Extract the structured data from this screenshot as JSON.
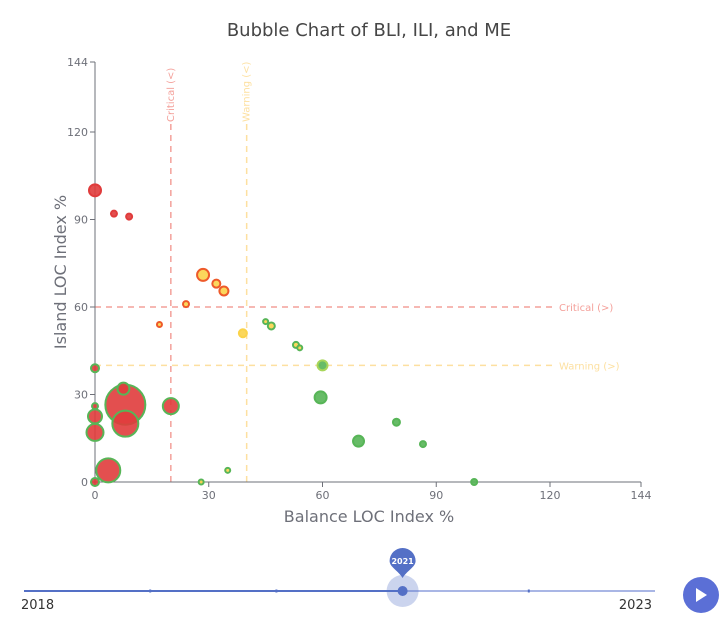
{
  "chart_data": {
    "type": "scatter",
    "title": "Bubble Chart of BLI, ILI, and ME",
    "xlabel": "Balance LOC Index %",
    "ylabel": "Island LOC Index %",
    "xlim": [
      0,
      144
    ],
    "ylim": [
      0,
      144
    ],
    "x_ticks": [
      0,
      30,
      60,
      90,
      120,
      144
    ],
    "y_ticks": [
      0,
      30,
      60,
      90,
      120,
      144
    ],
    "reference_lines": [
      {
        "axis": "x",
        "value": 20,
        "label": "Critical (<)",
        "color": "#f4a09a"
      },
      {
        "axis": "x",
        "value": 40,
        "label": "Warning (<)",
        "color": "#fde0a0"
      },
      {
        "axis": "y",
        "value": 60,
        "label": "Critical (>)",
        "color": "#f4a09a"
      },
      {
        "axis": "y",
        "value": 40,
        "label": "Warning (>)",
        "color": "#fde0a0"
      }
    ],
    "points": [
      {
        "x": 0,
        "y": 100,
        "size": 6,
        "fill": "#e03c3c",
        "stroke": "#e03c3c"
      },
      {
        "x": 5,
        "y": 92,
        "size": 3,
        "fill": "#e03c3c",
        "stroke": "#e03c3c"
      },
      {
        "x": 9,
        "y": 91,
        "size": 3,
        "fill": "#e03c3c",
        "stroke": "#e03c3c"
      },
      {
        "x": 28.5,
        "y": 71,
        "size": 6,
        "fill": "#fbd34a",
        "stroke": "#ee5a2a"
      },
      {
        "x": 32,
        "y": 68,
        "size": 4,
        "fill": "#fbd34a",
        "stroke": "#ee5a2a"
      },
      {
        "x": 34,
        "y": 65.5,
        "size": 4.5,
        "fill": "#fbd34a",
        "stroke": "#ee5a2a"
      },
      {
        "x": 24,
        "y": 61,
        "size": 3,
        "fill": "#fbd34a",
        "stroke": "#ee5a2a"
      },
      {
        "x": 17,
        "y": 54,
        "size": 2.5,
        "fill": "#fbd34a",
        "stroke": "#ee5a2a"
      },
      {
        "x": 39,
        "y": 51,
        "size": 4,
        "fill": "#fbd34a",
        "stroke": "#fbd34a"
      },
      {
        "x": 45,
        "y": 55,
        "size": 2.5,
        "fill": "#fbd34a",
        "stroke": "#57b557"
      },
      {
        "x": 46.5,
        "y": 53.5,
        "size": 3.5,
        "fill": "#fbd34a",
        "stroke": "#57b557"
      },
      {
        "x": 53,
        "y": 47,
        "size": 3,
        "fill": "#fbd34a",
        "stroke": "#57b557"
      },
      {
        "x": 54,
        "y": 46,
        "size": 2.5,
        "fill": "#fbd34a",
        "stroke": "#57b557"
      },
      {
        "x": 60,
        "y": 40,
        "size": 5,
        "fill": "#57b557",
        "stroke": "#a8d65a"
      },
      {
        "x": 59.5,
        "y": 29,
        "size": 6,
        "fill": "#57b557",
        "stroke": "#57b557"
      },
      {
        "x": 69.5,
        "y": 14,
        "size": 5.5,
        "fill": "#57b557",
        "stroke": "#57b557"
      },
      {
        "x": 79.5,
        "y": 20.5,
        "size": 3.5,
        "fill": "#57b557",
        "stroke": "#57b557"
      },
      {
        "x": 86.5,
        "y": 13,
        "size": 3,
        "fill": "#57b557",
        "stroke": "#57b557"
      },
      {
        "x": 100,
        "y": 0,
        "size": 3,
        "fill": "#57b557",
        "stroke": "#57b557"
      },
      {
        "x": 28,
        "y": 0,
        "size": 2.5,
        "fill": "#fbd34a",
        "stroke": "#57b557"
      },
      {
        "x": 35,
        "y": 4,
        "size": 2.5,
        "fill": "#fbd34a",
        "stroke": "#57b557"
      },
      {
        "x": 0,
        "y": 39,
        "size": 4,
        "fill": "#e03c3c",
        "stroke": "#57b557"
      },
      {
        "x": 0,
        "y": 26,
        "size": 3,
        "fill": "#e03c3c",
        "stroke": "#57b557"
      },
      {
        "x": 0,
        "y": 22.5,
        "size": 7,
        "fill": "#e03c3c",
        "stroke": "#57b557"
      },
      {
        "x": 0,
        "y": 17,
        "size": 8.5,
        "fill": "#e03c3c",
        "stroke": "#57b557"
      },
      {
        "x": 0,
        "y": 0,
        "size": 4,
        "fill": "#e03c3c",
        "stroke": "#57b557"
      },
      {
        "x": 3.5,
        "y": 4,
        "size": 12,
        "fill": "#e03c3c",
        "stroke": "#57b557"
      },
      {
        "x": 7.5,
        "y": 32,
        "size": 6,
        "fill": "#e03c3c",
        "stroke": "#57b557"
      },
      {
        "x": 8,
        "y": 26.5,
        "size": 20,
        "fill": "#e03c3c",
        "stroke": "#57b557"
      },
      {
        "x": 8,
        "y": 20,
        "size": 13,
        "fill": "#e03c3c",
        "stroke": "#57b557"
      },
      {
        "x": 20,
        "y": 26,
        "size": 8,
        "fill": "#e03c3c",
        "stroke": "#57b557"
      }
    ]
  },
  "timeline": {
    "start_label": "2018",
    "end_label": "2023",
    "current_label": "2021",
    "current_fraction": 0.6,
    "accent_color": "#5470c6",
    "play_label": "play"
  }
}
